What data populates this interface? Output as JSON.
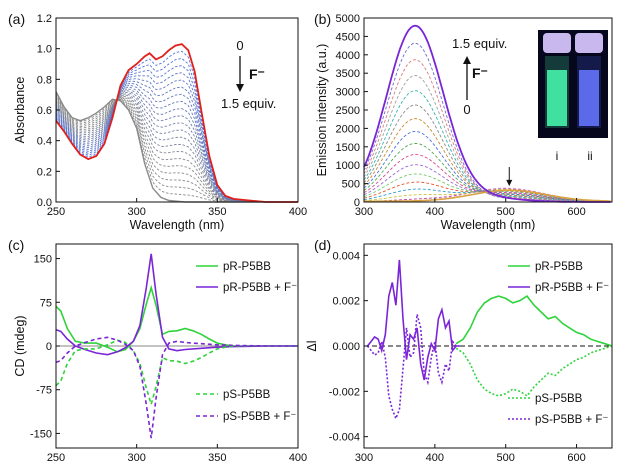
{
  "colors": {
    "red": "#e0201b",
    "blue": "#4a6fe3",
    "gray": "#8a8a8a",
    "green": "#2fd33a",
    "purple": "#7a25d6",
    "black": "#111111",
    "orange": "#d9a441"
  },
  "chart_data": [
    {
      "panel": "(a)",
      "type": "line",
      "xlabel": "Wavelength (nm)",
      "ylabel": "Absorbance",
      "xlim": [
        250,
        400
      ],
      "ylim": [
        0,
        1.2
      ],
      "xticks": [
        "250",
        "300",
        "350",
        "400"
      ],
      "yticks": [
        "0.0",
        "0.2",
        "0.4",
        "0.6",
        "0.8",
        "1.0",
        "1.2"
      ],
      "annotation": {
        "start": "0",
        "ion": "F⁻",
        "end": "1.5 equiv."
      },
      "series": [
        {
          "style": "red solid (0 equiv.)",
          "x": [
            250,
            255,
            260,
            265,
            270,
            275,
            280,
            285,
            290,
            295,
            300,
            305,
            308,
            312,
            316,
            320,
            324,
            328,
            332,
            336,
            340,
            345,
            350,
            355,
            360,
            370,
            380,
            390,
            400
          ],
          "y": [
            0.53,
            0.46,
            0.38,
            0.31,
            0.28,
            0.3,
            0.38,
            0.55,
            0.76,
            0.86,
            0.9,
            0.95,
            0.97,
            0.93,
            0.95,
            0.99,
            1.02,
            1.03,
            0.99,
            0.85,
            0.6,
            0.3,
            0.11,
            0.04,
            0.02,
            0.01,
            0.0,
            0.0,
            0.0
          ]
        },
        {
          "style": "gray dashed (1.5 equiv.)",
          "x": [
            250,
            255,
            260,
            265,
            270,
            275,
            280,
            285,
            290,
            295,
            300,
            305,
            310,
            315,
            320,
            330,
            340,
            350,
            360,
            370,
            380,
            390,
            400
          ],
          "y": [
            0.72,
            0.62,
            0.55,
            0.53,
            0.55,
            0.58,
            0.62,
            0.67,
            0.66,
            0.6,
            0.48,
            0.25,
            0.09,
            0.03,
            0.01,
            0.0,
            0.0,
            0.0,
            0.0,
            0.0,
            0.0,
            0.0,
            0.0
          ]
        }
      ]
    },
    {
      "panel": "(b)",
      "type": "line",
      "xlabel": "Wavelength (nm)",
      "ylabel": "Emission intensity (a.u.)",
      "xlim": [
        300,
        650
      ],
      "ylim": [
        0,
        5000
      ],
      "xticks": [
        "300",
        "400",
        "500",
        "600"
      ],
      "yticks": [
        "0",
        "500",
        "1000",
        "1500",
        "2000",
        "2500",
        "3000",
        "3500",
        "4000",
        "4500",
        "5000"
      ],
      "annotation": {
        "start": "0",
        "ion": "F⁻",
        "end": "1.5 equiv."
      },
      "inset_labels": [
        "i",
        "ii"
      ],
      "series": [
        {
          "style": "purple solid (1.5 equiv.)",
          "peak_x": 372,
          "peak_y": 4780
        },
        {
          "style": "orange (0 equiv.)",
          "peak_x": 505,
          "peak_y": 300
        }
      ]
    },
    {
      "panel": "(c)",
      "type": "line",
      "xlabel": "Wavelength (nm)",
      "ylabel": "CD (mdeg)",
      "xlim": [
        250,
        400
      ],
      "ylim": [
        -175,
        175
      ],
      "xticks": [
        "250",
        "300",
        "350",
        "400"
      ],
      "yticks": [
        "150",
        "75",
        "0",
        "-75",
        "-150"
      ],
      "series": [
        {
          "name": "pR-P5BB",
          "x": [
            250,
            253,
            257,
            262,
            268,
            275,
            282,
            288,
            293,
            298,
            302,
            306,
            309,
            312,
            316,
            320,
            325,
            330,
            335,
            340,
            345,
            350,
            355,
            360,
            370,
            380,
            400
          ],
          "y": [
            68,
            60,
            30,
            8,
            5,
            5,
            -2,
            -10,
            -6,
            8,
            30,
            72,
            100,
            70,
            20,
            25,
            26,
            30,
            26,
            20,
            12,
            5,
            2,
            0,
            0,
            0,
            0
          ]
        },
        {
          "name": "pR-P5BB + F⁻",
          "x": [
            250,
            253,
            257,
            262,
            268,
            275,
            282,
            288,
            293,
            298,
            302,
            306,
            309,
            312,
            316,
            320,
            325,
            330,
            340,
            350,
            360,
            380,
            400
          ],
          "y": [
            28,
            25,
            12,
            0,
            -6,
            -12,
            -15,
            -10,
            -3,
            8,
            35,
            100,
            158,
            90,
            15,
            -5,
            -8,
            -6,
            -4,
            -2,
            -1,
            0,
            0
          ]
        },
        {
          "name": "pS-P5BB",
          "x": [
            250,
            253,
            257,
            262,
            268,
            275,
            282,
            288,
            293,
            298,
            302,
            306,
            309,
            312,
            316,
            320,
            325,
            330,
            335,
            340,
            345,
            350,
            355,
            360,
            370,
            380,
            400
          ],
          "y": [
            -68,
            -60,
            -30,
            -8,
            -5,
            -5,
            2,
            10,
            6,
            -8,
            -30,
            -72,
            -100,
            -70,
            -20,
            -25,
            -26,
            -30,
            -26,
            -20,
            -12,
            -5,
            -2,
            0,
            0,
            0,
            0
          ]
        },
        {
          "name": "pS-P5BB + F⁻",
          "x": [
            250,
            253,
            257,
            262,
            268,
            275,
            282,
            288,
            293,
            298,
            302,
            306,
            309,
            312,
            316,
            320,
            325,
            330,
            340,
            350,
            360,
            380,
            400
          ],
          "y": [
            -28,
            -25,
            -12,
            0,
            6,
            12,
            15,
            10,
            3,
            -8,
            -35,
            -100,
            -158,
            -90,
            -15,
            5,
            8,
            6,
            4,
            2,
            1,
            0,
            0
          ]
        }
      ]
    },
    {
      "panel": "(d)",
      "type": "line",
      "xlabel": "Wavelength (nm)",
      "ylabel": "Δl",
      "xlim": [
        300,
        650
      ],
      "ylim": [
        -0.0045,
        0.0045
      ],
      "xticks": [
        "300",
        "400",
        "500",
        "600"
      ],
      "yticks": [
        "0.004",
        "0.002",
        "0.000",
        "-0.002",
        "-0.004"
      ],
      "series": [
        {
          "name": "pR-P5BB",
          "x": [
            430,
            440,
            450,
            460,
            470,
            480,
            490,
            500,
            510,
            520,
            530,
            540,
            550,
            560,
            570,
            580,
            590,
            600,
            610,
            620,
            630,
            640,
            650
          ],
          "y": [
            0.0001,
            0.0003,
            0.0008,
            0.0015,
            0.0019,
            0.0021,
            0.0022,
            0.0021,
            0.0019,
            0.002,
            0.0022,
            0.0018,
            0.0015,
            0.0012,
            0.0013,
            0.001,
            0.0008,
            0.0006,
            0.0005,
            0.0003,
            0.0002,
            0.0001,
            0.0
          ]
        },
        {
          "name": "pR-P5BB + F⁻",
          "x": [
            305,
            310,
            315,
            320,
            325,
            330,
            335,
            340,
            345,
            350,
            355,
            360,
            365,
            370,
            375,
            380,
            385,
            390,
            395,
            400,
            405,
            410,
            415,
            420,
            425,
            430,
            435
          ],
          "y": [
            0.0,
            0.0002,
            0.0004,
            0.0003,
            -0.0002,
            0.0005,
            0.0022,
            0.0028,
            0.0018,
            0.0038,
            0.0012,
            -0.0006,
            0.0005,
            0.0003,
            0.0008,
            -0.0008,
            -0.0015,
            -0.0005,
            0.0001,
            -0.0002,
            0.0012,
            0.0016,
            0.0008,
            0.0011,
            -0.0002,
            0.0,
            0.0
          ]
        },
        {
          "name": "pS-P5BB",
          "x": [
            430,
            440,
            450,
            460,
            470,
            480,
            490,
            500,
            510,
            520,
            530,
            540,
            550,
            560,
            570,
            580,
            590,
            600,
            610,
            620,
            630,
            640,
            650
          ],
          "y": [
            -0.0001,
            -0.0003,
            -0.0008,
            -0.0015,
            -0.0019,
            -0.0021,
            -0.0022,
            -0.0021,
            -0.0019,
            -0.002,
            -0.0022,
            -0.0018,
            -0.0015,
            -0.0012,
            -0.0013,
            -0.001,
            -0.0008,
            -0.0006,
            -0.0005,
            -0.0003,
            -0.0002,
            -0.0001,
            0.0
          ]
        },
        {
          "name": "pS-P5BB + F⁻",
          "x": [
            305,
            310,
            315,
            320,
            325,
            330,
            335,
            340,
            345,
            350,
            355,
            360,
            365,
            370,
            375,
            380,
            385,
            390,
            395,
            400,
            405,
            410,
            415,
            420,
            425,
            430,
            435
          ],
          "y": [
            0.0,
            -0.0002,
            -0.0004,
            -0.0003,
            0.0002,
            -0.0005,
            -0.0022,
            -0.0028,
            -0.0032,
            -0.0028,
            -0.001,
            0.0008,
            -0.0005,
            -0.0003,
            0.0014,
            0.0008,
            -0.0012,
            -0.0016,
            -0.0005,
            0.0002,
            -0.0012,
            -0.0016,
            -0.0008,
            -0.0011,
            0.0002,
            0.0,
            0.0
          ]
        }
      ]
    }
  ]
}
